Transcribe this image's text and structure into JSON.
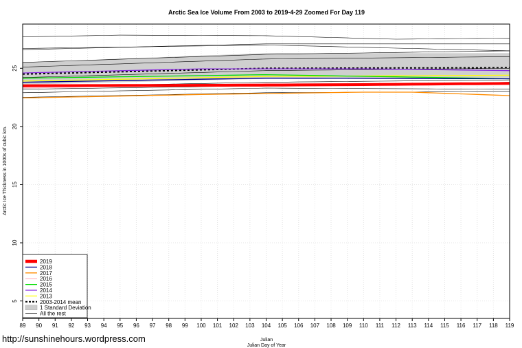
{
  "chart_data": {
    "type": "line",
    "title": "Arctic Sea Ice Volume From 2003 to 2019-4-29 Zoomed For Day 119",
    "xlabel": "Julian",
    "xlabel2": "Julian Day of Year",
    "ylabel": "Arctic Ice Thickness in 1000s of cubic km.",
    "watermark": "http://sunshinehours.wordpress.com",
    "xlim": [
      89,
      119
    ],
    "ylim": [
      3.5,
      28.8
    ],
    "xticks": [
      89,
      90,
      91,
      92,
      93,
      94,
      95,
      96,
      97,
      98,
      99,
      100,
      101,
      102,
      103,
      104,
      105,
      106,
      107,
      108,
      109,
      110,
      111,
      112,
      113,
      114,
      115,
      116,
      117,
      118,
      119
    ],
    "yticks": [
      5,
      10,
      15,
      20,
      25
    ],
    "grid": true,
    "legend_position": "bottom-left",
    "legend": [
      {
        "label": "2019",
        "color": "#ff0000",
        "style": "thick"
      },
      {
        "label": "2018",
        "color": "#00008b",
        "style": "line"
      },
      {
        "label": "2017",
        "color": "#ff8c00",
        "style": "line"
      },
      {
        "label": "2016",
        "color": "#ffc0cb",
        "style": "line"
      },
      {
        "label": "2015",
        "color": "#00dd00",
        "style": "line"
      },
      {
        "label": "2014",
        "color": "#8a2be2",
        "style": "line"
      },
      {
        "label": "2013",
        "color": "#ffff00",
        "style": "line"
      },
      {
        "label": "2003-2014 mean",
        "color": "#000000",
        "style": "dashed"
      },
      {
        "label": "1 Standard Deviation",
        "color": "#cccccc",
        "style": "box"
      },
      {
        "label": "All the rest",
        "color": "#000000",
        "style": "thin"
      }
    ],
    "std_band": {
      "x": [
        89,
        104,
        119
      ],
      "upper": [
        25.5,
        26.3,
        26.3
      ],
      "lower": [
        23.6,
        24.1,
        24.2
      ]
    },
    "series": [
      {
        "name": "2019",
        "color": "#ff0000",
        "width": 4,
        "x": [
          89,
          104,
          110,
          119
        ],
        "y": [
          23.5,
          23.55,
          23.6,
          23.7
        ]
      },
      {
        "name": "2018",
        "color": "#00008b",
        "width": 1.3,
        "x": [
          89,
          104,
          119
        ],
        "y": [
          23.8,
          24.15,
          24.1
        ]
      },
      {
        "name": "2017",
        "color": "#ff8c00",
        "width": 1.3,
        "x": [
          89,
          100,
          110,
          113,
          119
        ],
        "y": [
          22.45,
          22.75,
          22.95,
          22.95,
          22.65
        ]
      },
      {
        "name": "2016",
        "color": "#ffc0cb",
        "width": 1.3,
        "x": [
          89,
          104,
          119
        ],
        "y": [
          23.3,
          23.7,
          23.6
        ]
      },
      {
        "name": "2015",
        "color": "#00dd00",
        "width": 1.3,
        "x": [
          89,
          104,
          119
        ],
        "y": [
          24.15,
          24.45,
          24.1
        ]
      },
      {
        "name": "2014",
        "color": "#8a2be2",
        "width": 1.3,
        "x": [
          89,
          100,
          110,
          119
        ],
        "y": [
          24.6,
          24.95,
          24.95,
          24.8
        ]
      },
      {
        "name": "2013",
        "color": "#ffff00",
        "width": 1.3,
        "x": [
          89,
          104,
          119
        ],
        "y": [
          23.9,
          24.3,
          24.4
        ]
      },
      {
        "name": "2003-2014 mean",
        "color": "#000000",
        "width": 2,
        "dash": "3,3",
        "x": [
          89,
          104,
          119
        ],
        "y": [
          24.5,
          25.0,
          25.05
        ]
      }
    ],
    "rest": [
      {
        "x": [
          89,
          95,
          104,
          112,
          119
        ],
        "y": [
          27.7,
          27.85,
          27.8,
          27.5,
          27.6
        ]
      },
      {
        "x": [
          89,
          104,
          119
        ],
        "y": [
          26.6,
          27.1,
          27.1
        ]
      },
      {
        "x": [
          89,
          104,
          119
        ],
        "y": [
          26.7,
          27.0,
          26.5
        ]
      },
      {
        "x": [
          89,
          104,
          119
        ],
        "y": [
          25.5,
          26.2,
          26.5
        ]
      },
      {
        "x": [
          89,
          104,
          119
        ],
        "y": [
          25.1,
          25.8,
          26.0
        ]
      },
      {
        "x": [
          89,
          104,
          119
        ],
        "y": [
          24.2,
          24.8,
          25.0
        ]
      },
      {
        "x": [
          89,
          104,
          119
        ],
        "y": [
          23.4,
          23.8,
          24.0
        ]
      },
      {
        "x": [
          89,
          104,
          119
        ],
        "y": [
          23.2,
          23.5,
          23.8
        ]
      },
      {
        "x": [
          89,
          104,
          119
        ],
        "y": [
          22.9,
          23.3,
          23.2
        ]
      },
      {
        "x": [
          89,
          104,
          119
        ],
        "y": [
          22.5,
          22.9,
          23.0
        ]
      }
    ]
  }
}
